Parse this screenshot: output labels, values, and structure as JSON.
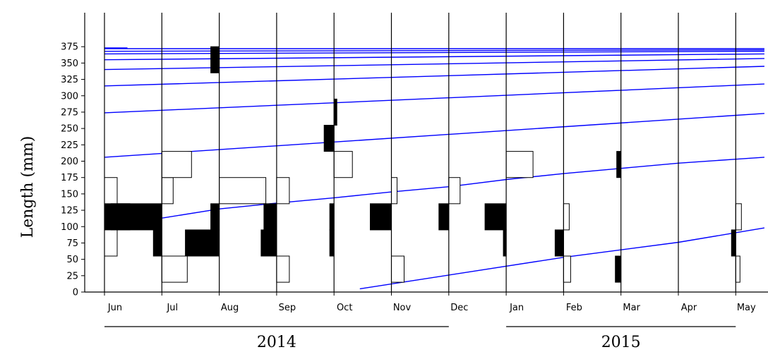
{
  "chart_data": {
    "type": "length-frequency histogram with growth curves",
    "ylabel": "Length (mm)",
    "ylim": [
      0,
      375
    ],
    "yticks": [
      0,
      25,
      50,
      75,
      100,
      125,
      150,
      175,
      200,
      225,
      250,
      275,
      300,
      325,
      350,
      375
    ],
    "x_months": [
      "Jun",
      "Jul",
      "Aug",
      "Sep",
      "Oct",
      "Nov",
      "Dec",
      "Jan",
      "Feb",
      "Mar",
      "Apr",
      "May"
    ],
    "years": [
      {
        "label": "2014",
        "from_month": 0,
        "to_month": 6
      },
      {
        "label": "2015",
        "from_month": 7,
        "to_month": 11
      }
    ],
    "grid": false,
    "colors": {
      "growth_curve": "#0000ff",
      "histogram_filled": "#000000",
      "histogram_open": "#ffffff",
      "axis": "#000000"
    },
    "samples": [
      {
        "month": 0,
        "bars": [
          {
            "lo": 95,
            "hi": 135,
            "freq": 0.9,
            "filled": true
          },
          {
            "lo": 55,
            "hi": 95,
            "freq": 0.45,
            "filled": false
          },
          {
            "lo": 135,
            "hi": 175,
            "freq": 0.45,
            "filled": false
          }
        ]
      },
      {
        "month": 1,
        "bars": [
          {
            "lo": 95,
            "hi": 135,
            "freq": -1.8,
            "filled": true
          },
          {
            "lo": 55,
            "hi": 95,
            "freq": -0.3,
            "filled": true
          },
          {
            "lo": 135,
            "hi": 175,
            "freq": 0.4,
            "filled": false
          },
          {
            "lo": 175,
            "hi": 215,
            "freq": 1.05,
            "filled": false
          },
          {
            "lo": 15,
            "hi": 55,
            "freq": 0.9,
            "filled": false
          }
        ]
      },
      {
        "month": 2,
        "bars": [
          {
            "lo": 55,
            "hi": 95,
            "freq": -1.2,
            "filled": true
          },
          {
            "lo": 95,
            "hi": 135,
            "freq": -0.3,
            "filled": true
          },
          {
            "lo": 135,
            "hi": 175,
            "freq": 1.65,
            "filled": false
          },
          {
            "lo": 335,
            "hi": 375,
            "freq": -0.3,
            "filled": true
          }
        ]
      },
      {
        "month": 3,
        "bars": [
          {
            "lo": 55,
            "hi": 95,
            "freq": -0.55,
            "filled": true
          },
          {
            "lo": 95,
            "hi": 135,
            "freq": -0.45,
            "filled": true
          },
          {
            "lo": 135,
            "hi": 175,
            "freq": 0.45,
            "filled": false
          },
          {
            "lo": 15,
            "hi": 55,
            "freq": 0.45,
            "filled": false
          }
        ]
      },
      {
        "month": 4,
        "bars": [
          {
            "lo": 55,
            "hi": 95,
            "freq": -0.15,
            "filled": true
          },
          {
            "lo": 95,
            "hi": 135,
            "freq": -0.15,
            "filled": true
          },
          {
            "lo": 215,
            "hi": 255,
            "freq": -0.35,
            "filled": true
          },
          {
            "lo": 255,
            "hi": 295,
            "freq": 0.1,
            "filled": true
          },
          {
            "lo": 175,
            "hi": 215,
            "freq": 0.65,
            "filled": false
          }
        ]
      },
      {
        "month": 5,
        "bars": [
          {
            "lo": 95,
            "hi": 135,
            "freq": -0.75,
            "filled": true
          },
          {
            "lo": 135,
            "hi": 175,
            "freq": 0.2,
            "filled": false
          },
          {
            "lo": 15,
            "hi": 55,
            "freq": 0.45,
            "filled": false
          }
        ]
      },
      {
        "month": 6,
        "bars": [
          {
            "lo": 95,
            "hi": 135,
            "freq": -0.35,
            "filled": true
          },
          {
            "lo": 135,
            "hi": 175,
            "freq": 0.4,
            "filled": false
          }
        ]
      },
      {
        "month": 7,
        "bars": [
          {
            "lo": 95,
            "hi": 135,
            "freq": -0.75,
            "filled": true
          },
          {
            "lo": 55,
            "hi": 95,
            "freq": -0.1,
            "filled": true
          },
          {
            "lo": 175,
            "hi": 215,
            "freq": 0.95,
            "filled": false
          }
        ]
      },
      {
        "month": 8,
        "bars": [
          {
            "lo": 55,
            "hi": 95,
            "freq": -0.3,
            "filled": true
          },
          {
            "lo": 95,
            "hi": 135,
            "freq": 0.2,
            "filled": false
          },
          {
            "lo": 15,
            "hi": 55,
            "freq": 0.25,
            "filled": false
          }
        ]
      },
      {
        "month": 9,
        "bars": [
          {
            "lo": 175,
            "hi": 215,
            "freq": -0.15,
            "filled": true
          },
          {
            "lo": 15,
            "hi": 55,
            "freq": -0.2,
            "filled": true
          }
        ]
      },
      {
        "month": 11,
        "bars": [
          {
            "lo": 55,
            "hi": 95,
            "freq": -0.15,
            "filled": true
          },
          {
            "lo": 95,
            "hi": 135,
            "freq": 0.2,
            "filled": false
          },
          {
            "lo": 15,
            "hi": 55,
            "freq": 0.15,
            "filled": false
          }
        ]
      }
    ],
    "growth_curves": [
      {
        "points": [
          [
            0,
            373
          ],
          [
            0.4,
            373
          ]
        ]
      },
      {
        "points": [
          [
            0,
            372
          ],
          [
            11.5,
            372
          ]
        ]
      },
      {
        "points": [
          [
            0,
            368
          ],
          [
            11.5,
            370
          ]
        ]
      },
      {
        "points": [
          [
            0,
            364
          ],
          [
            11.5,
            368
          ]
        ]
      },
      {
        "points": [
          [
            0,
            355
          ],
          [
            11.5,
            364
          ]
        ]
      },
      {
        "points": [
          [
            0,
            340
          ],
          [
            11.5,
            357
          ]
        ]
      },
      {
        "points": [
          [
            0,
            315
          ],
          [
            11.5,
            345
          ]
        ]
      },
      {
        "points": [
          [
            0,
            274
          ],
          [
            11.5,
            318
          ]
        ]
      },
      {
        "points": [
          [
            0,
            206
          ],
          [
            11.5,
            273
          ]
        ]
      },
      {
        "points": [
          [
            0,
            96
          ],
          [
            1,
            113
          ],
          [
            2,
            127
          ],
          [
            3,
            136
          ],
          [
            4,
            144
          ],
          [
            5,
            153
          ],
          [
            6,
            161
          ],
          [
            7,
            172
          ],
          [
            8,
            181
          ],
          [
            9,
            189
          ],
          [
            10,
            197
          ],
          [
            11,
            203
          ],
          [
            11.5,
            206
          ]
        ]
      },
      {
        "points": [
          [
            4.45,
            5
          ],
          [
            8,
            53
          ],
          [
            10,
            76
          ],
          [
            11.5,
            98
          ]
        ]
      }
    ]
  }
}
